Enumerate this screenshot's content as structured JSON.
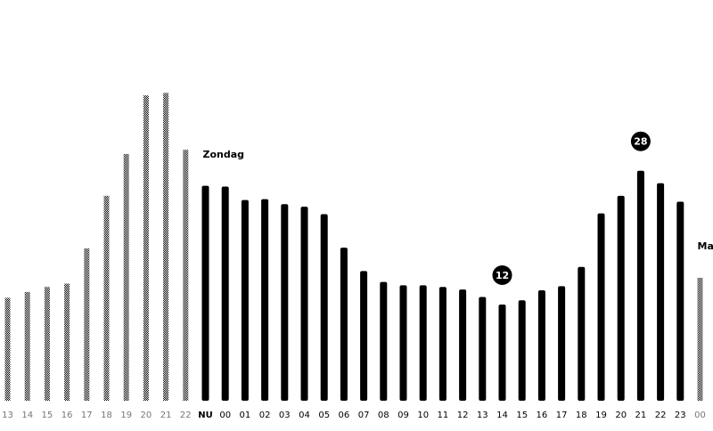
{
  "chart_data": {
    "type": "bar",
    "categories": [
      "13",
      "14",
      "15",
      "16",
      "17",
      "18",
      "19",
      "20",
      "21",
      "22",
      "NU",
      "00",
      "01",
      "02",
      "03",
      "04",
      "05",
      "06",
      "07",
      "08",
      "09",
      "10",
      "11",
      "12",
      "13",
      "14",
      "15",
      "16",
      "17",
      "18",
      "19",
      "20",
      "21",
      "22",
      "23",
      "00"
    ],
    "values": [
      12.8,
      13.5,
      14.1,
      14.5,
      18.7,
      25,
      30,
      37,
      37.3,
      30.5,
      26.2,
      26.1,
      24.5,
      24.6,
      24,
      23.7,
      22.8,
      18.8,
      16,
      14.7,
      14.3,
      14.3,
      14.1,
      13.8,
      12.9,
      12,
      12.5,
      13.7,
      14.2,
      16.5,
      22.9,
      25,
      28,
      26.5,
      24.3,
      15.2
    ],
    "color": "#000000",
    "ylim": [
      0.5,
      40
    ],
    "solid_range": [
      10,
      34
    ],
    "annotations": [
      {
        "text": "Zondag",
        "category_index": 10
      },
      {
        "text": "Maand",
        "category_index": 35
      }
    ]
  }
}
